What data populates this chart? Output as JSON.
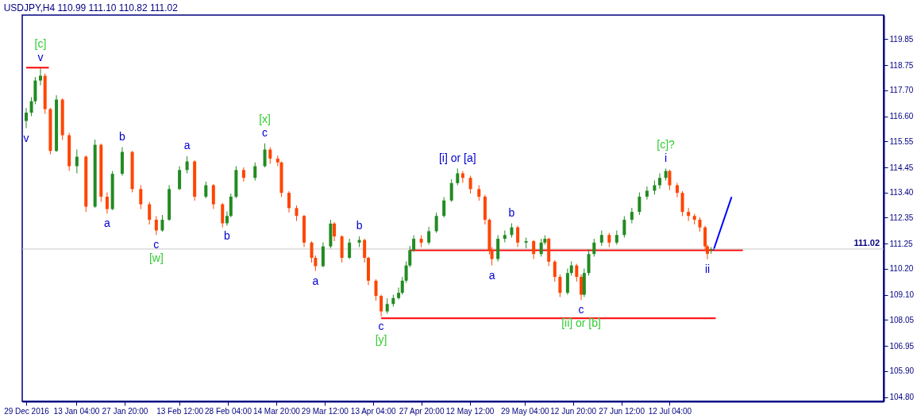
{
  "chart_data": {
    "type": "candlestick",
    "title": "USDJPY,H4  110.99 111.10 110.82 111.02",
    "colors": [
      "#228b22",
      "#228b22",
      "#228b22",
      "#228b22",
      "#ff4500",
      "#ff4500",
      "#228b22",
      "#ff4500",
      "#ff4500",
      "#228b22",
      "#ff4500",
      "#228b22",
      "#ff4500",
      "#ff4500",
      "#228b22",
      "#228b22",
      "#ff4500",
      "#ff4500",
      "#ff4500",
      "#ff4500",
      "#228b22",
      "#228b22",
      "#228b22",
      "#228b22",
      "#ff4500",
      "#228b22",
      "#ff4500",
      "#ff4500",
      "#228b22",
      "#228b22",
      "#228b22",
      "#ff4500",
      "#228b22",
      "#228b22",
      "#ff4500",
      "#ff4500",
      "#ff4500",
      "#ff4500",
      "#ff4500",
      "#ff4500",
      "#ff4500",
      "#ff4500",
      "#228b22",
      "#228b22",
      "#ff4500",
      "#ff4500",
      "#228b22",
      "#228b22",
      "#ff4500",
      "#ff4500",
      "#ff4500",
      "#ff4500",
      "#228b22",
      "#228b22",
      "#228b22",
      "#228b22",
      "#228b22",
      "#228b22",
      "#228b22",
      "#ff4500",
      "#228b22",
      "#228b22",
      "#228b22",
      "#228b22",
      "#228b22",
      "#ff4500",
      "#ff4500",
      "#ff4500",
      "#ff4500",
      "#ff4500",
      "#ff4500",
      "#228b22",
      "#228b22",
      "#228b22",
      "#ff4500",
      "#228b22",
      "#ff4500",
      "#228b22",
      "#228b22",
      "#ff4500",
      "#ff4500",
      "#ff4500",
      "#228b22",
      "#228b22",
      "#ff4500",
      "#ff4500",
      "#228b22",
      "#228b22",
      "#228b22",
      "#228b22",
      "#ff4500",
      "#228b22",
      "#228b22",
      "#228b22",
      "#228b22",
      "#228b22",
      "#228b22",
      "#228b22",
      "#228b22",
      "#ff4500",
      "#ff4500",
      "#ff4500",
      "#ff4500",
      "#ff4500",
      "#ff4500",
      "#ff4500",
      "#ff4500",
      "#228b22"
    ],
    "x": [
      "2016-12-29T00:00",
      "2016-12-30T14:00",
      "2016-12-31T18:00",
      "2017-01-02T08:00",
      "2017-01-03T17:00",
      "2017-01-05T08:00",
      "2017-01-07T04:00",
      "2017-01-09T00:00",
      "2017-01-11T01:00",
      "2017-01-13T09:00",
      "2017-01-16T03:00",
      "2017-01-18T21:00",
      "2017-01-20T17:00",
      "2017-01-22T13:00",
      "2017-01-24T04:00",
      "2017-01-27T03:00",
      "2017-01-30T04:00",
      "2017-02-01T18:00",
      "2017-02-04T09:00",
      "2017-02-06T11:00",
      "2017-02-08T07:00",
      "2017-02-10T09:00",
      "2017-02-13T12:00",
      "2017-02-15T19:00",
      "2017-02-18T02:00",
      "2017-02-21T12:00",
      "2017-02-23T19:00",
      "2017-02-26T13:00",
      "2017-02-27T22:00",
      "2017-03-01T02:00",
      "2017-03-02T16:00",
      "2017-03-04T23:00",
      "2017-03-08T10:00",
      "2017-03-11T09:00",
      "2017-03-13T00:00",
      "2017-03-15T07:00",
      "2017-03-16T10:00",
      "2017-03-18T17:00",
      "2017-03-21T00:00",
      "2017-03-23T07:00",
      "2017-03-25T14:00",
      "2017-03-26T18:00",
      "2017-03-29T01:00",
      "2017-03-31T08:00",
      "2017-04-01T11:00",
      "2017-04-03T18:00",
      "2017-04-06T01:00",
      "2017-04-09T01:00",
      "2017-04-10T15:00",
      "2017-04-11T19:00",
      "2017-04-14T02:00",
      "2017-04-15T16:00",
      "2017-04-17T12:00",
      "2017-04-19T08:00",
      "2017-04-20T23:00",
      "2017-04-22T02:00",
      "2017-04-23T06:00",
      "2017-04-24T09:00",
      "2017-04-25T13:00",
      "2017-04-27T20:00",
      "2017-04-30T03:00",
      "2017-05-02T10:00",
      "2017-05-04T17:00",
      "2017-05-07T00:00",
      "2017-05-08T20:00",
      "2017-05-10T10:00",
      "2017-05-12T18:00",
      "2017-05-15T08:00",
      "2017-05-17T04:00",
      "2017-05-18T12:00",
      "2017-05-19T06:00",
      "2017-05-21T02:00",
      "2017-05-23T04:00",
      "2017-05-25T06:00",
      "2017-05-27T02:00",
      "2017-05-29T15:00",
      "2017-05-31T22:00",
      "2017-06-03T05:00",
      "2017-06-04T08:00",
      "2017-06-05T12:00",
      "2017-06-07T08:00",
      "2017-06-08T22:00",
      "2017-06-11T05:00",
      "2017-06-12T09:00",
      "2017-06-13T23:00",
      "2017-06-15T08:00",
      "2017-06-16T06:00",
      "2017-06-17T15:00",
      "2017-06-19T06:00",
      "2017-06-21T13:00",
      "2017-06-23T20:00",
      "2017-06-26T03:00",
      "2017-06-28T10:00",
      "2017-06-30T17:00",
      "2017-07-03T00:00",
      "2017-07-05T07:00",
      "2017-07-07T14:00",
      "2017-07-09T04:00",
      "2017-07-11T00:00",
      "2017-07-12T04:00",
      "2017-07-14T11:00",
      "2017-07-16T01:00",
      "2017-07-17T21:00",
      "2017-07-19T17:00",
      "2017-07-21T08:00",
      "2017-07-22T22:00",
      "2017-07-23T15:00",
      "2017-07-24T18:00"
    ],
    "ohlc": [
      [
        116.4,
        116.95,
        116.1,
        116.75
      ],
      [
        116.75,
        117.4,
        116.6,
        117.23
      ],
      [
        117.23,
        118.25,
        117.1,
        118.1
      ],
      [
        118.1,
        118.61,
        117.9,
        118.3
      ],
      [
        118.3,
        118.4,
        116.7,
        116.9
      ],
      [
        116.9,
        116.95,
        115.0,
        115.14
      ],
      [
        115.14,
        117.48,
        115.1,
        117.3
      ],
      [
        117.3,
        117.35,
        115.6,
        115.8
      ],
      [
        115.8,
        115.9,
        114.3,
        114.5
      ],
      [
        114.5,
        115.2,
        114.2,
        114.9
      ],
      [
        114.9,
        114.95,
        112.58,
        112.8
      ],
      [
        112.8,
        115.62,
        112.75,
        115.4
      ],
      [
        115.4,
        115.45,
        113.0,
        113.22
      ],
      [
        113.22,
        113.4,
        112.51,
        112.7
      ],
      [
        112.7,
        114.3,
        112.65,
        114.18
      ],
      [
        114.18,
        115.3,
        114.1,
        115.1
      ],
      [
        115.1,
        115.15,
        113.4,
        113.54
      ],
      [
        113.54,
        113.7,
        112.7,
        112.9
      ],
      [
        112.9,
        113.0,
        112.05,
        112.25
      ],
      [
        112.25,
        112.4,
        111.61,
        111.8
      ],
      [
        111.8,
        112.45,
        111.75,
        112.25
      ],
      [
        112.25,
        113.7,
        112.2,
        113.54
      ],
      [
        113.54,
        114.5,
        113.5,
        114.34
      ],
      [
        114.34,
        114.92,
        114.2,
        114.7
      ],
      [
        114.7,
        114.75,
        113.05,
        113.22
      ],
      [
        113.22,
        113.85,
        113.15,
        113.7
      ],
      [
        113.7,
        113.75,
        112.7,
        112.9
      ],
      [
        112.9,
        112.95,
        111.93,
        112.1
      ],
      [
        112.1,
        112.6,
        112.0,
        112.41
      ],
      [
        112.41,
        113.35,
        112.35,
        113.22
      ],
      [
        113.22,
        114.5,
        113.15,
        114.34
      ],
      [
        114.34,
        114.45,
        113.85,
        114.01
      ],
      [
        114.01,
        114.66,
        113.9,
        114.5
      ],
      [
        114.5,
        115.46,
        114.45,
        115.2
      ],
      [
        115.2,
        115.3,
        114.6,
        114.82
      ],
      [
        114.82,
        114.95,
        114.5,
        114.66
      ],
      [
        114.66,
        114.7,
        113.2,
        113.38
      ],
      [
        113.38,
        113.45,
        112.55,
        112.74
      ],
      [
        112.74,
        112.85,
        112.2,
        112.41
      ],
      [
        112.41,
        112.45,
        111.1,
        111.29
      ],
      [
        111.29,
        111.35,
        110.45,
        110.65
      ],
      [
        110.65,
        110.75,
        110.1,
        110.3
      ],
      [
        110.3,
        111.3,
        110.25,
        111.13
      ],
      [
        111.13,
        112.25,
        111.05,
        112.09
      ],
      [
        112.09,
        112.15,
        111.35,
        111.55
      ],
      [
        111.55,
        111.6,
        110.45,
        110.65
      ],
      [
        110.65,
        111.45,
        110.6,
        111.29
      ],
      [
        111.29,
        111.55,
        111.1,
        111.4
      ],
      [
        111.4,
        111.45,
        110.45,
        110.65
      ],
      [
        110.65,
        110.7,
        109.5,
        109.69
      ],
      [
        109.69,
        109.75,
        108.85,
        109.05
      ],
      [
        109.05,
        109.1,
        108.18,
        108.4
      ],
      [
        108.4,
        108.95,
        108.3,
        108.71
      ],
      [
        108.71,
        109.1,
        108.6,
        108.96
      ],
      [
        108.96,
        109.4,
        108.9,
        109.18
      ],
      [
        109.18,
        109.85,
        109.1,
        109.69
      ],
      [
        109.69,
        110.5,
        109.6,
        110.33
      ],
      [
        110.33,
        111.15,
        110.25,
        110.97
      ],
      [
        110.97,
        111.6,
        110.9,
        111.45
      ],
      [
        111.45,
        111.6,
        111.1,
        111.29
      ],
      [
        111.29,
        111.95,
        111.2,
        111.77
      ],
      [
        111.77,
        112.55,
        111.7,
        112.41
      ],
      [
        112.41,
        113.2,
        112.35,
        113.06
      ],
      [
        113.06,
        113.95,
        113.0,
        113.79
      ],
      [
        113.79,
        114.4,
        113.7,
        114.2
      ],
      [
        114.2,
        114.3,
        113.8,
        114.01
      ],
      [
        114.01,
        114.1,
        113.35,
        113.54
      ],
      [
        113.54,
        113.7,
        113.05,
        113.22
      ],
      [
        113.22,
        113.3,
        112.05,
        112.25
      ],
      [
        112.25,
        112.3,
        110.8,
        110.97
      ],
      [
        110.97,
        111.1,
        110.33,
        110.6
      ],
      [
        110.6,
        111.6,
        110.5,
        111.45
      ],
      [
        111.45,
        111.8,
        111.3,
        111.61
      ],
      [
        111.61,
        112.1,
        111.5,
        111.93
      ],
      [
        111.93,
        112.0,
        111.1,
        111.29
      ],
      [
        111.29,
        111.5,
        111.05,
        111.35
      ],
      [
        111.35,
        111.4,
        110.6,
        110.81
      ],
      [
        110.81,
        111.45,
        110.7,
        111.29
      ],
      [
        111.29,
        111.6,
        111.2,
        111.45
      ],
      [
        111.45,
        111.5,
        110.3,
        110.49
      ],
      [
        110.49,
        110.55,
        109.65,
        109.85
      ],
      [
        109.85,
        109.95,
        109.0,
        109.18
      ],
      [
        109.18,
        110.2,
        109.1,
        110.01
      ],
      [
        110.01,
        110.5,
        109.9,
        110.33
      ],
      [
        110.33,
        110.4,
        109.65,
        109.85
      ],
      [
        109.85,
        109.95,
        108.88,
        109.1
      ],
      [
        109.1,
        110.2,
        109.0,
        110.01
      ],
      [
        110.01,
        111.0,
        109.9,
        110.81
      ],
      [
        110.81,
        111.45,
        110.7,
        111.29
      ],
      [
        111.29,
        111.8,
        111.15,
        111.61
      ],
      [
        111.61,
        111.7,
        111.1,
        111.29
      ],
      [
        111.29,
        111.8,
        111.2,
        111.61
      ],
      [
        111.61,
        112.4,
        111.5,
        112.25
      ],
      [
        112.25,
        112.75,
        112.1,
        112.58
      ],
      [
        112.58,
        113.4,
        112.45,
        113.22
      ],
      [
        113.22,
        113.65,
        113.1,
        113.47
      ],
      [
        113.47,
        113.9,
        113.3,
        113.7
      ],
      [
        113.7,
        114.2,
        113.55,
        114.01
      ],
      [
        114.01,
        114.4,
        113.9,
        114.3
      ],
      [
        114.3,
        114.35,
        113.5,
        113.7
      ],
      [
        113.7,
        113.8,
        113.2,
        113.38
      ],
      [
        113.38,
        113.45,
        112.4,
        112.58
      ],
      [
        112.58,
        112.75,
        112.2,
        112.41
      ],
      [
        112.41,
        112.5,
        112.05,
        112.25
      ],
      [
        112.25,
        112.35,
        111.75,
        111.93
      ],
      [
        111.93,
        112.0,
        110.95,
        111.13
      ],
      [
        111.13,
        111.2,
        110.59,
        110.82
      ],
      [
        110.99,
        111.1,
        110.82,
        111.02
      ]
    ],
    "series": [
      {
        "type": "line",
        "color": "#ff0000",
        "x": [
          "2016-12-29T00:00",
          "2017-01-04T21:00"
        ],
        "values": [
          118.64,
          118.64
        ]
      },
      {
        "type": "line",
        "color": "#ff0000",
        "x": [
          "2017-04-24T09:00",
          "2017-08-03T09:00"
        ],
        "values": [
          110.97,
          110.97
        ]
      },
      {
        "type": "line",
        "color": "#ff0000",
        "x": [
          "2017-04-15T16:00",
          "2017-07-26T03:00"
        ],
        "values": [
          108.11,
          108.11
        ]
      },
      {
        "type": "line",
        "color": "#0000ff",
        "x": [
          "2017-07-25T11:00",
          "2017-07-30T23:00"
        ],
        "values": [
          110.97,
          113.21
        ]
      }
    ],
    "ref_lines": [
      {
        "axis": "y",
        "value": 111.02,
        "label": "111.02",
        "color": "#c8c8c8"
      }
    ],
    "xlim": [
      "2016-12-29T00:00",
      "2017-09-13T21:00"
    ],
    "xticks": [
      {
        "value": "2016-12-29T00:00",
        "label": "29 Dec 2016"
      },
      {
        "value": "2017-01-13T04:00",
        "label": "13 Jan 04:00"
      },
      {
        "value": "2017-01-27T20:00",
        "label": "27 Jan 20:00"
      },
      {
        "value": "2017-02-13T12:00",
        "label": "13 Feb 12:00"
      },
      {
        "value": "2017-02-28T04:00",
        "label": "28 Feb 04:00"
      },
      {
        "value": "2017-03-14T20:00",
        "label": "14 Mar 20:00"
      },
      {
        "value": "2017-03-29T12:00",
        "label": "29 Mar 12:00"
      },
      {
        "value": "2017-04-13T04:00",
        "label": "13 Apr 04:00"
      },
      {
        "value": "2017-04-27T20:00",
        "label": "27 Apr 20:00"
      },
      {
        "value": "2017-05-12T12:00",
        "label": "12 May 12:00"
      },
      {
        "value": "2017-05-29T04:00",
        "label": "29 May 04:00"
      },
      {
        "value": "2017-06-12T20:00",
        "label": "12 Jun 20:00"
      },
      {
        "value": "2017-06-27T12:00",
        "label": "27 Jun 12:00"
      },
      {
        "value": "2017-07-12T04:00",
        "label": "12 Jul 04:00"
      }
    ],
    "ylim": [
      104.62,
      120.85
    ],
    "yticks": [
      {
        "value": 104.8,
        "label": "104.80"
      },
      {
        "value": 105.9,
        "label": "105.90"
      },
      {
        "value": 106.95,
        "label": "106.95"
      },
      {
        "value": 108.05,
        "label": "108.05"
      },
      {
        "value": 109.1,
        "label": "109.10"
      },
      {
        "value": 110.2,
        "label": "110.20"
      },
      {
        "value": 111.25,
        "label": "111.25"
      },
      {
        "value": 112.35,
        "label": "112.35"
      },
      {
        "value": 113.4,
        "label": "113.40"
      },
      {
        "value": 114.45,
        "label": "114.45"
      },
      {
        "value": 115.55,
        "label": "115.55"
      },
      {
        "value": 116.6,
        "label": "116.60"
      },
      {
        "value": 117.7,
        "label": "117.70"
      },
      {
        "value": 118.75,
        "label": "118.75"
      },
      {
        "value": 119.85,
        "label": "119.85"
      }
    ],
    "grid": false,
    "annotations": [
      {
        "text": "v",
        "x": "2017-01-02T08:00",
        "y": 118.61
      },
      {
        "text": "[c]",
        "x": "2017-01-02T08:00",
        "y": 118.61
      },
      {
        "text": "v",
        "x": "2016-12-29T00:00",
        "y": 116.1
      },
      {
        "text": "a",
        "x": "2017-01-22T13:00",
        "y": 112.51
      },
      {
        "text": "b",
        "x": "2017-01-27T03:00",
        "y": 115.3
      },
      {
        "text": "c",
        "x": "2017-02-06T11:00",
        "y": 111.61
      },
      {
        "text": "[w]",
        "x": "2017-02-06T11:00",
        "y": 111.61
      },
      {
        "text": "a",
        "x": "2017-02-15T19:00",
        "y": 114.92
      },
      {
        "text": "b",
        "x": "2017-02-27T22:00",
        "y": 112.0
      },
      {
        "text": "c",
        "x": "2017-03-11T09:00",
        "y": 115.46
      },
      {
        "text": "[x]",
        "x": "2017-03-11T09:00",
        "y": 115.46
      },
      {
        "text": "a",
        "x": "2017-03-26T18:00",
        "y": 110.1
      },
      {
        "text": "b",
        "x": "2017-04-09T01:00",
        "y": 111.55
      },
      {
        "text": "c",
        "x": "2017-04-15T16:00",
        "y": 108.18
      },
      {
        "text": "[y]",
        "x": "2017-04-15T16:00",
        "y": 108.18
      },
      {
        "text": "[i] or [a]",
        "x": "2017-05-08T20:00",
        "y": 114.4
      },
      {
        "text": "a",
        "x": "2017-05-19T06:00",
        "y": 110.33
      },
      {
        "text": "b",
        "x": "2017-05-25T06:00",
        "y": 112.1
      },
      {
        "text": "c",
        "x": "2017-06-15T08:00",
        "y": 108.88
      },
      {
        "text": "[ii] or [b]",
        "x": "2017-06-15T08:00",
        "y": 108.88
      },
      {
        "text": "i",
        "x": "2017-07-11T00:00",
        "y": 114.4
      },
      {
        "text": "[c]?",
        "x": "2017-07-11T00:00",
        "y": 114.4
      },
      {
        "text": "ii",
        "x": "2017-07-23T15:00",
        "y": 110.59
      }
    ]
  }
}
